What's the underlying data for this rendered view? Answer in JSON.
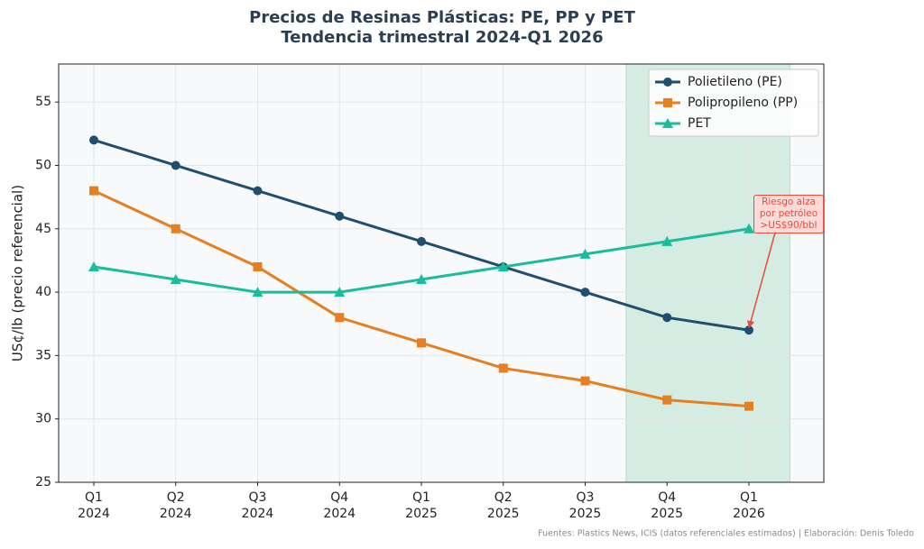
{
  "chart_data": {
    "type": "line",
    "title": "Precios de Resinas Plásticas: PE, PP y PET",
    "subtitle": "Tendencia trimestral 2024-Q1 2026",
    "y_label": "US¢/lb (precio referencial)",
    "categories": [
      "Q1\n2024",
      "Q2\n2024",
      "Q3\n2024",
      "Q4\n2024",
      "Q1\n2025",
      "Q2\n2025",
      "Q3\n2025",
      "Q4\n2025",
      "Q1\n2026"
    ],
    "series": [
      {
        "name": "Polietileno (PE)",
        "color": "#1f4e6e",
        "marker": "circle",
        "values": [
          52,
          50,
          48,
          46,
          44,
          42,
          40,
          38,
          37
        ]
      },
      {
        "name": "Polipropileno (PP)",
        "color": "#e67e22",
        "marker": "square",
        "values": [
          48,
          45,
          42,
          38,
          36,
          34,
          33,
          31.5,
          31
        ]
      },
      {
        "name": "PET",
        "color": "#1abc9c",
        "marker": "triangle",
        "values": [
          42,
          41,
          40,
          40,
          41,
          42,
          43,
          44,
          45
        ]
      }
    ],
    "ylim": [
      25,
      58
    ],
    "yticks": [
      25,
      30,
      35,
      40,
      45,
      50,
      55
    ],
    "grid": true,
    "legend": "upper right",
    "highlight_color": "#d4ece2",
    "annotation": {
      "text": "Riesgo alza\npor petróleo\n>US$90/bbl",
      "color": "#e74c3c"
    },
    "source": "Fuentes: Plastics News, ICIS (datos referenciales estimados) | Elaboración: Denis Toledo"
  }
}
